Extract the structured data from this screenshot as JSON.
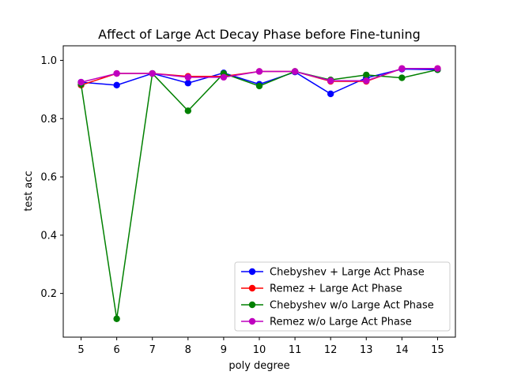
{
  "chart_data": {
    "type": "line",
    "title": "Affect of Large Act Decay Phase before Fine-tuning",
    "xlabel": "poly degree",
    "ylabel": "test acc",
    "x": [
      5,
      6,
      7,
      8,
      9,
      10,
      11,
      12,
      13,
      14,
      15
    ],
    "xlim": [
      4.5,
      15.5
    ],
    "ylim": [
      0.05,
      1.05
    ],
    "yticks": [
      0.2,
      0.4,
      0.6,
      0.8,
      1.0
    ],
    "ytick_labels": [
      "0.2",
      "0.4",
      "0.6",
      "0.8",
      "1.0"
    ],
    "grid": false,
    "legend_position": "lower-right",
    "series": [
      {
        "name": "Chebyshev + Large Act Phase",
        "color": "#0000ff",
        "values": [
          0.925,
          0.915,
          0.955,
          0.922,
          0.957,
          0.918,
          0.96,
          0.885,
          0.94,
          0.97,
          0.968
        ]
      },
      {
        "name": "Remez + Large Act Phase",
        "color": "#ff0000",
        "values": [
          0.915,
          0.955,
          0.955,
          0.945,
          0.945,
          0.962,
          0.962,
          0.928,
          0.928,
          0.972,
          0.972
        ]
      },
      {
        "name": "Chebyshev w/o Large Act Phase",
        "color": "#008000",
        "values": [
          0.918,
          0.113,
          0.955,
          0.827,
          0.955,
          0.912,
          0.962,
          0.933,
          0.95,
          0.94,
          0.968
        ]
      },
      {
        "name": "Remez w/o Large Act Phase",
        "color": "#bf00bf",
        "values": [
          0.925,
          0.955,
          0.955,
          0.942,
          0.942,
          0.962,
          0.962,
          0.93,
          0.93,
          0.972,
          0.972
        ]
      }
    ]
  }
}
